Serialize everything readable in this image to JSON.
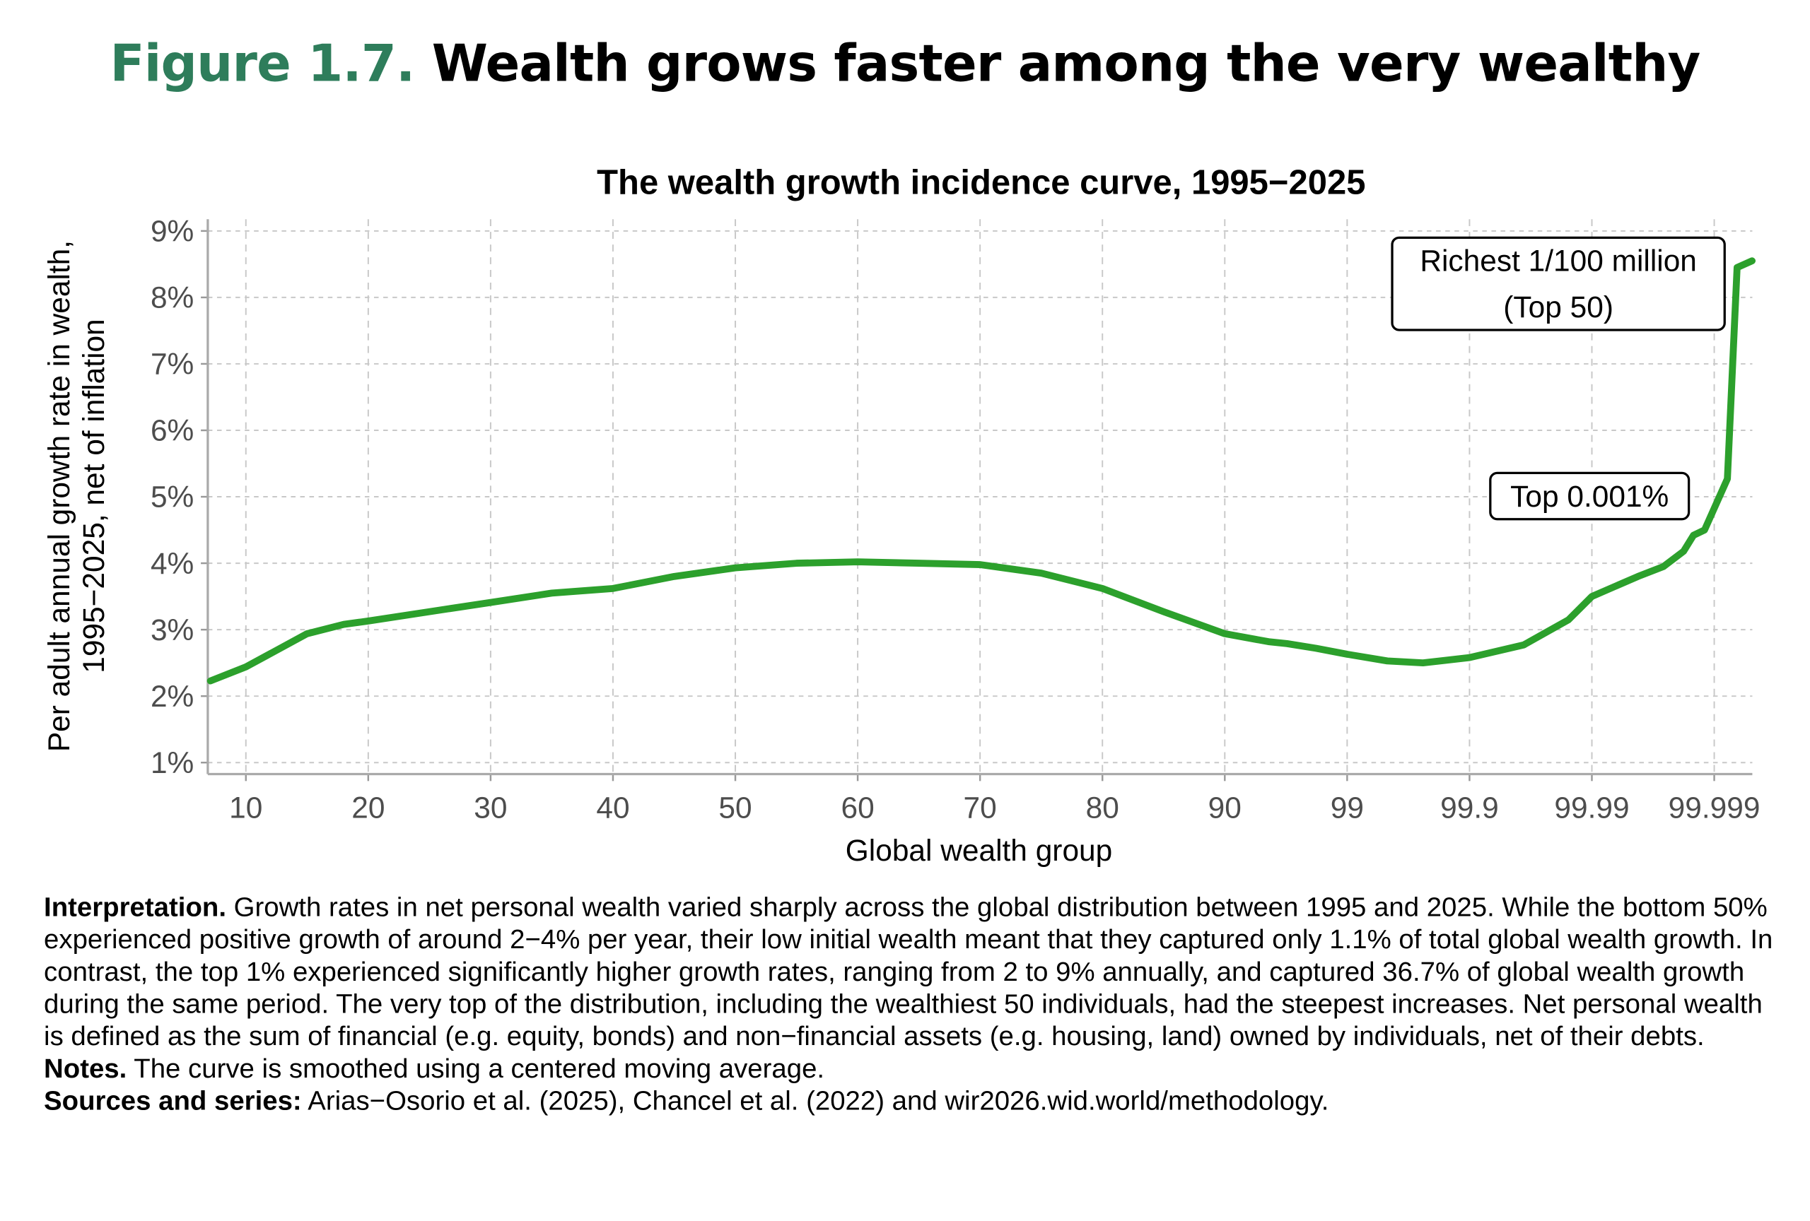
{
  "figure": {
    "number": "Figure 1.7.",
    "title": "Wealth grows faster among the very wealthy",
    "accent_color": "#2e7d5b"
  },
  "chart_data": {
    "type": "line",
    "title": "The wealth growth incidence curve, 1995−2025",
    "xlabel": "Global wealth group",
    "ylabel_lines": [
      "Per adult annual growth rate in wealth,",
      "1995−2025, net of inflation"
    ],
    "x_scale": "linear up to 90, then logarithmic in distance to 100 (90, 99, 99.9, 99.99, 99.999)",
    "x_ticks": [
      10,
      20,
      30,
      40,
      50,
      60,
      70,
      80,
      90,
      99,
      99.9,
      99.99,
      99.999
    ],
    "x_tick_labels": [
      "10",
      "20",
      "30",
      "40",
      "50",
      "60",
      "70",
      "80",
      "90",
      "99",
      "99.9",
      "99.99",
      "99.999"
    ],
    "y_ticks": [
      1,
      2,
      3,
      4,
      5,
      6,
      7,
      8,
      9
    ],
    "y_tick_labels": [
      "1%",
      "2%",
      "3%",
      "4%",
      "5%",
      "6%",
      "7%",
      "8%",
      "9%"
    ],
    "ylim": [
      0.9,
      9.2
    ],
    "grid": true,
    "line_color": "#2ca02c",
    "series": [
      {
        "x": [
          7.1,
          10,
          15,
          18,
          20,
          25,
          30,
          35,
          40,
          45,
          50,
          55,
          60,
          65,
          70,
          75,
          80,
          85,
          90,
          95.6,
          96.9,
          98.2,
          99,
          99.53,
          99.76,
          99.9,
          99.964,
          99.9845,
          99.99,
          99.9958,
          99.9974,
          99.99822,
          99.99852,
          99.9988,
          99.99922,
          99.99935,
          99.99951
        ],
        "y": [
          2.23,
          2.44,
          2.94,
          3.08,
          3.13,
          3.27,
          3.41,
          3.55,
          3.62,
          3.8,
          3.93,
          4.0,
          4.02,
          4.0,
          3.98,
          3.85,
          3.62,
          3.27,
          2.94,
          2.82,
          2.79,
          2.72,
          2.63,
          2.53,
          2.5,
          2.58,
          2.77,
          3.15,
          3.5,
          3.8,
          3.95,
          4.18,
          4.42,
          4.5,
          5.27,
          8.45,
          8.55
        ]
      }
    ],
    "annotations": [
      {
        "lines": [
          "Richest 1/100 million",
          "(Top 50)"
        ]
      },
      {
        "lines": [
          "Top 0.001%"
        ]
      }
    ]
  },
  "notes": {
    "interpretation_label": "Interpretation.",
    "interpretation_text": " Growth rates in net personal wealth varied sharply across the global distribution between 1995 and 2025. While the bottom 50% experienced positive growth of around 2−4% per year, their low initial wealth meant that they captured only 1.1% of total global wealth growth. In contrast, the top 1% experienced significantly higher growth rates, ranging from 2 to 9% annually, and captured 36.7% of global wealth growth during the same period. The very top of the distribution, including the wealthiest 50 individuals, had the steepest increases. Net personal wealth is defined as the sum of financial (e.g. equity, bonds) and non−financial assets (e.g. housing, land) owned by individuals, net of their debts. ",
    "notes_label": "Notes.",
    "notes_text": " The curve is smoothed using a centered moving average.",
    "sources_label": "Sources and series:",
    "sources_text": " Arias−Osorio et al. (2025), Chancel et al. (2022) and wir2026.wid.world/methodology."
  }
}
